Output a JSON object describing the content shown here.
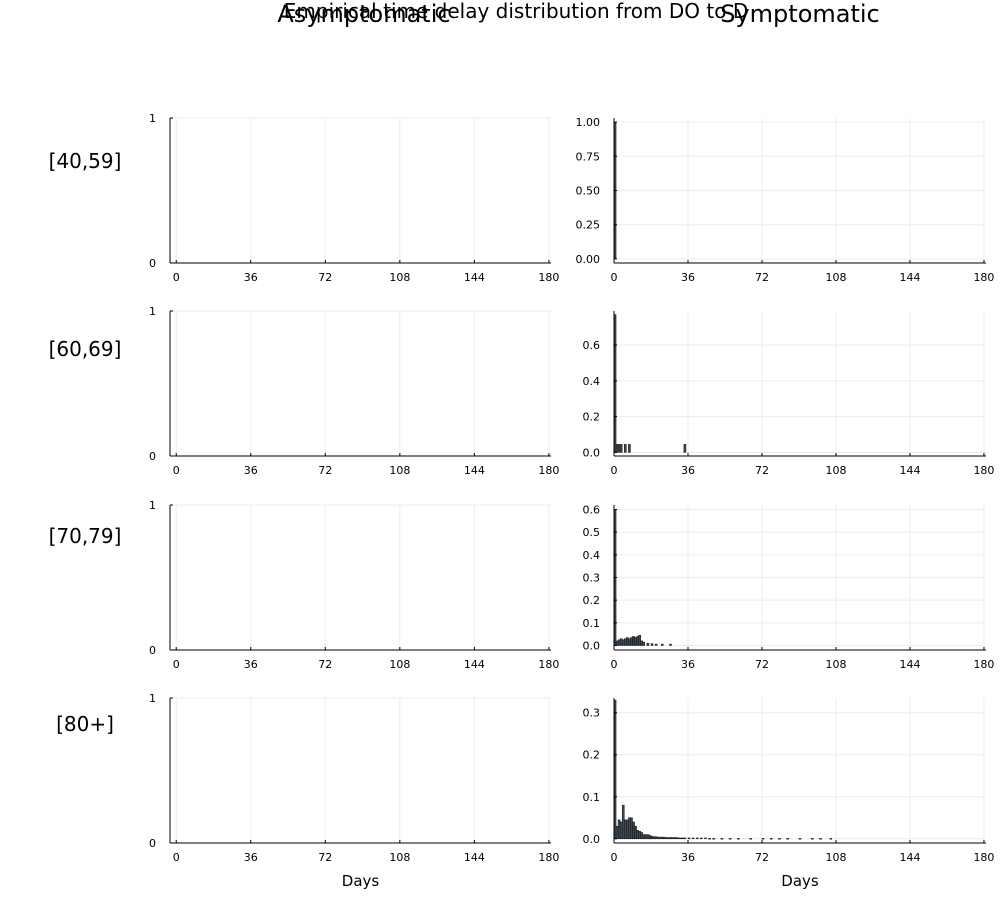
{
  "title": "Empirical time delay distribution from DO to D",
  "columns": [
    "Asymptomatic",
    "Symptomatic"
  ],
  "rows": [
    "[40,59]",
    "[60,69]",
    "[70,79]",
    "[80+]"
  ],
  "colors": {
    "bar": "#3b4a5a",
    "axis": "#000000",
    "grid": "#ececec"
  },
  "chart_data": [
    {
      "type": "bar",
      "row": "[40,59]",
      "column": "Asymptomatic",
      "xlabel": "",
      "ylabel": "",
      "xlim": [
        -3,
        181
      ],
      "ylim": [
        0,
        1
      ],
      "xticks": [
        0,
        36,
        72,
        108,
        144,
        180
      ],
      "yticks": [
        0,
        1
      ],
      "ytick_labels": [
        "0",
        "1"
      ],
      "grid": true,
      "bars": []
    },
    {
      "type": "bar",
      "row": "[40,59]",
      "column": "Symptomatic",
      "xlabel": "",
      "ylabel": "",
      "xlim": [
        0,
        181
      ],
      "ylim": [
        -0.03,
        1.03
      ],
      "xticks": [
        0,
        36,
        72,
        108,
        144,
        180
      ],
      "yticks": [
        0,
        0.25,
        0.5,
        0.75,
        1.0
      ],
      "ytick_labels": [
        "0.00",
        "0.25",
        "0.50",
        "0.75",
        "1.00"
      ],
      "grid": true,
      "bars": [
        [
          0,
          1.0
        ]
      ]
    },
    {
      "type": "bar",
      "row": "[60,69]",
      "column": "Asymptomatic",
      "xlabel": "",
      "ylabel": "",
      "xlim": [
        -3,
        181
      ],
      "ylim": [
        0,
        1
      ],
      "xticks": [
        0,
        36,
        72,
        108,
        144,
        180
      ],
      "yticks": [
        0,
        1
      ],
      "ytick_labels": [
        "0",
        "1"
      ],
      "grid": true,
      "bars": []
    },
    {
      "type": "bar",
      "row": "[60,69]",
      "column": "Symptomatic",
      "xlabel": "",
      "ylabel": "",
      "xlim": [
        0,
        181
      ],
      "ylim": [
        -0.02,
        0.79
      ],
      "xticks": [
        0,
        36,
        72,
        108,
        144,
        180
      ],
      "yticks": [
        0,
        0.2,
        0.4,
        0.6
      ],
      "ytick_labels": [
        "0.0",
        "0.2",
        "0.4",
        "0.6"
      ],
      "grid": true,
      "bars": [
        [
          0,
          0.77
        ],
        [
          1,
          0.045
        ],
        [
          2,
          0.045
        ],
        [
          3,
          0.045
        ],
        [
          5,
          0.045
        ],
        [
          7,
          0.045
        ],
        [
          34,
          0.045
        ]
      ]
    },
    {
      "type": "bar",
      "row": "[70,79]",
      "column": "Asymptomatic",
      "xlabel": "",
      "ylabel": "",
      "xlim": [
        -3,
        181
      ],
      "ylim": [
        0,
        1
      ],
      "xticks": [
        0,
        36,
        72,
        108,
        144,
        180
      ],
      "yticks": [
        0,
        1
      ],
      "ytick_labels": [
        "0",
        "1"
      ],
      "grid": true,
      "bars": []
    },
    {
      "type": "bar",
      "row": "[70,79]",
      "column": "Symptomatic",
      "xlabel": "",
      "ylabel": "",
      "xlim": [
        0,
        181
      ],
      "ylim": [
        -0.02,
        0.62
      ],
      "xticks": [
        0,
        36,
        72,
        108,
        144,
        180
      ],
      "yticks": [
        0,
        0.1,
        0.2,
        0.3,
        0.4,
        0.5,
        0.6
      ],
      "ytick_labels": [
        "0.0",
        "0.1",
        "0.2",
        "0.3",
        "0.4",
        "0.5",
        "0.6"
      ],
      "grid": true,
      "bars": [
        [
          0,
          0.6
        ],
        [
          1,
          0.02
        ],
        [
          2,
          0.025
        ],
        [
          3,
          0.03
        ],
        [
          4,
          0.025
        ],
        [
          5,
          0.03
        ],
        [
          6,
          0.035
        ],
        [
          7,
          0.03
        ],
        [
          8,
          0.035
        ],
        [
          9,
          0.04
        ],
        [
          10,
          0.035
        ],
        [
          11,
          0.04
        ],
        [
          12,
          0.045
        ],
        [
          13,
          0.02
        ],
        [
          14,
          0.015
        ],
        [
          16,
          0.01
        ],
        [
          18,
          0.008
        ],
        [
          20,
          0.006
        ],
        [
          23,
          0.006
        ],
        [
          27,
          0.006
        ]
      ]
    },
    {
      "type": "bar",
      "row": "[80+]",
      "column": "Asymptomatic",
      "xlabel": "Days",
      "ylabel": "",
      "xlim": [
        -3,
        181
      ],
      "ylim": [
        0,
        1
      ],
      "xticks": [
        0,
        36,
        72,
        108,
        144,
        180
      ],
      "yticks": [
        0,
        1
      ],
      "ytick_labels": [
        "0",
        "1"
      ],
      "grid": true,
      "bars": []
    },
    {
      "type": "bar",
      "row": "[80+]",
      "column": "Symptomatic",
      "xlabel": "Days",
      "ylabel": "",
      "xlim": [
        0,
        181
      ],
      "ylim": [
        -0.01,
        0.335
      ],
      "xticks": [
        0,
        36,
        72,
        108,
        144,
        180
      ],
      "yticks": [
        0,
        0.1,
        0.2,
        0.3
      ],
      "ytick_labels": [
        "0.0",
        "0.1",
        "0.2",
        "0.3"
      ],
      "grid": true,
      "bars": [
        [
          0,
          0.33
        ],
        [
          1,
          0.03
        ],
        [
          2,
          0.045
        ],
        [
          3,
          0.04
        ],
        [
          4,
          0.08
        ],
        [
          5,
          0.045
        ],
        [
          6,
          0.045
        ],
        [
          7,
          0.05
        ],
        [
          8,
          0.05
        ],
        [
          9,
          0.04
        ],
        [
          10,
          0.03
        ],
        [
          11,
          0.02
        ],
        [
          12,
          0.018
        ],
        [
          13,
          0.015
        ],
        [
          14,
          0.01
        ],
        [
          15,
          0.01
        ],
        [
          16,
          0.01
        ],
        [
          17,
          0.008
        ],
        [
          18,
          0.006
        ],
        [
          19,
          0.005
        ],
        [
          20,
          0.005
        ],
        [
          21,
          0.004
        ],
        [
          22,
          0.004
        ],
        [
          23,
          0.004
        ],
        [
          24,
          0.004
        ],
        [
          25,
          0.003
        ],
        [
          26,
          0.003
        ],
        [
          27,
          0.003
        ],
        [
          28,
          0.003
        ],
        [
          29,
          0.003
        ],
        [
          30,
          0.003
        ],
        [
          31,
          0.002
        ],
        [
          32,
          0.002
        ],
        [
          33,
          0.002
        ],
        [
          34,
          0.002
        ],
        [
          36,
          0.002
        ],
        [
          38,
          0.002
        ],
        [
          40,
          0.002
        ],
        [
          42,
          0.002
        ],
        [
          44,
          0.002
        ],
        [
          46,
          0.001
        ],
        [
          48,
          0.001
        ],
        [
          52,
          0.001
        ],
        [
          56,
          0.001
        ],
        [
          60,
          0.001
        ],
        [
          66,
          0.001
        ],
        [
          72,
          0.001
        ],
        [
          76,
          0.001
        ],
        [
          80,
          0.001
        ],
        [
          84,
          0.001
        ],
        [
          90,
          0.001
        ],
        [
          96,
          0.001
        ],
        [
          100,
          0.001
        ],
        [
          105,
          0.001
        ]
      ]
    }
  ]
}
